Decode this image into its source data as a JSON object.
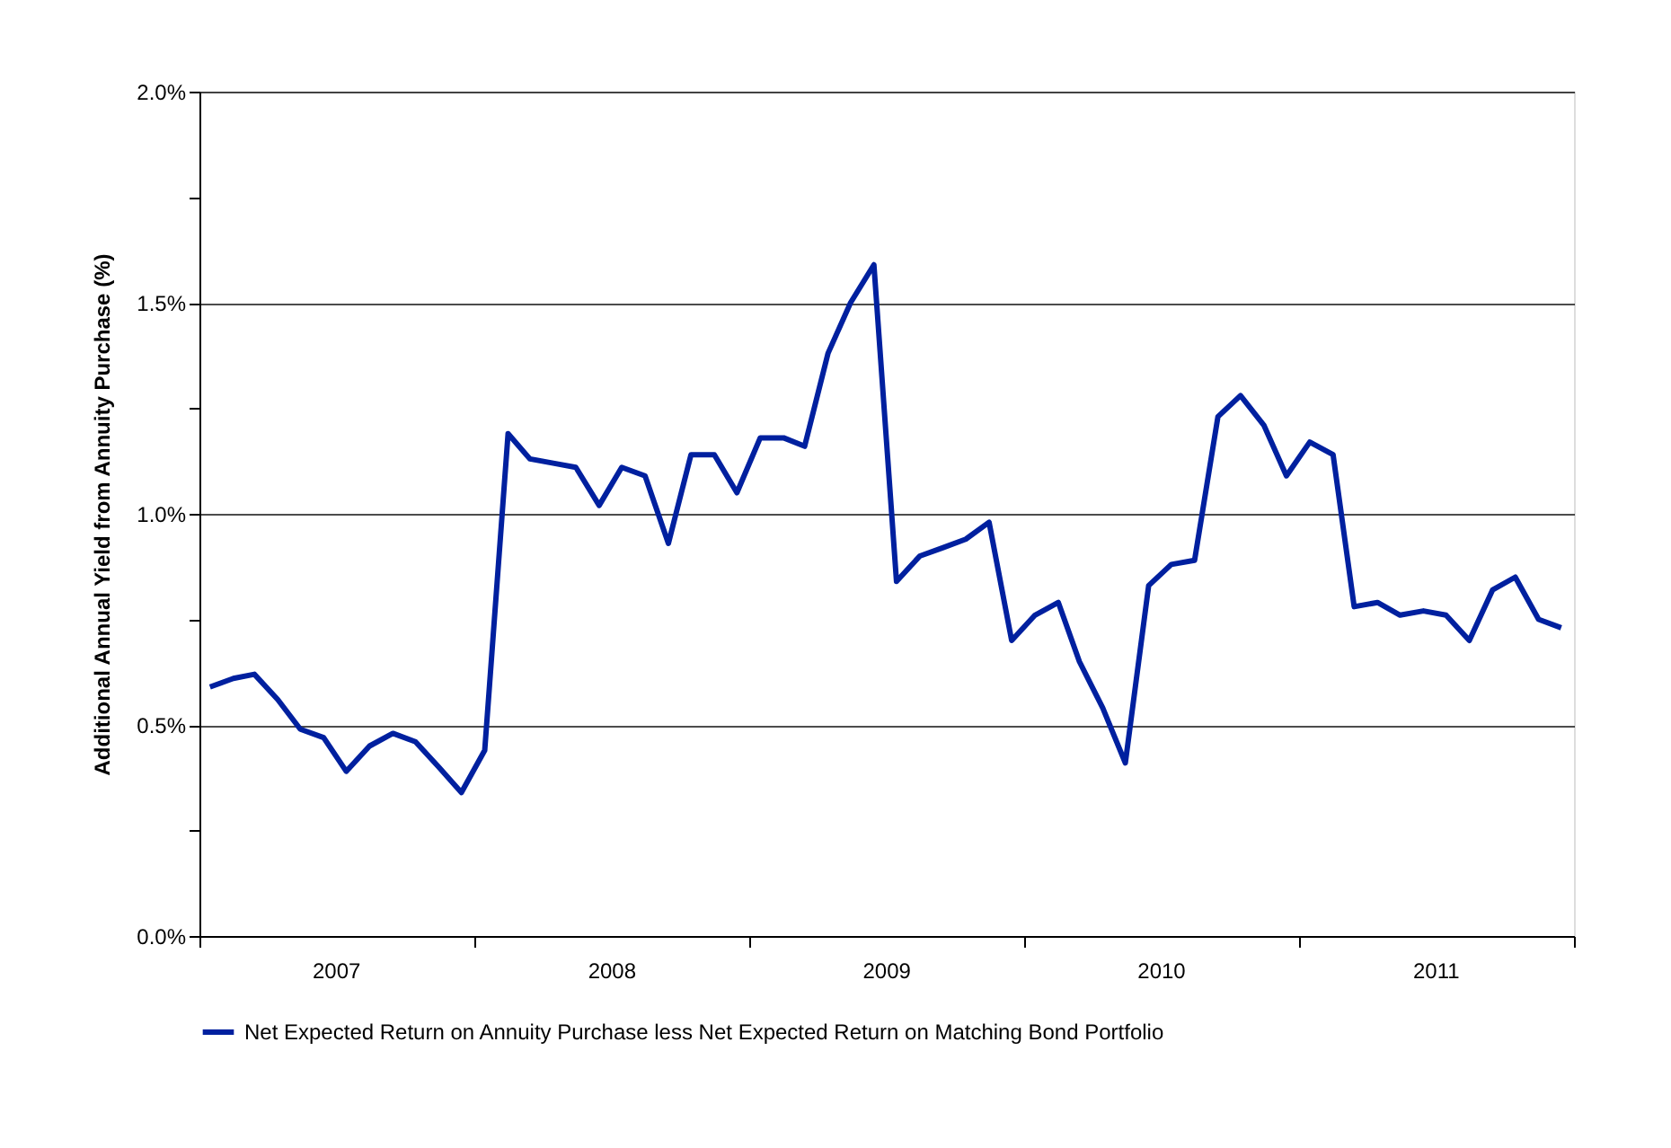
{
  "chart_data": {
    "type": "line",
    "ylabel": "Additional Annual Yield from Annuity Purchase (%)",
    "x": [
      "2007-01-15",
      "2007-02-15",
      "2007-03-15",
      "2007-04-15",
      "2007-05-15",
      "2007-06-15",
      "2007-07-15",
      "2007-08-15",
      "2007-09-15",
      "2007-10-15",
      "2007-11-15",
      "2007-12-15",
      "2008-01-15",
      "2008-02-15",
      "2008-03-15",
      "2008-04-15",
      "2008-05-15",
      "2008-06-15",
      "2008-07-15",
      "2008-08-15",
      "2008-09-15",
      "2008-10-15",
      "2008-11-15",
      "2008-12-15",
      "2009-01-15",
      "2009-02-15",
      "2009-03-15",
      "2009-04-15",
      "2009-05-15",
      "2009-06-15",
      "2009-07-15",
      "2009-08-15",
      "2009-09-15",
      "2009-10-15",
      "2009-11-15",
      "2009-12-15",
      "2010-01-15",
      "2010-02-15",
      "2010-03-15",
      "2010-04-15",
      "2010-05-15",
      "2010-06-15",
      "2010-07-15",
      "2010-08-15",
      "2010-09-15",
      "2010-10-15",
      "2010-11-15",
      "2010-12-15",
      "2011-01-15",
      "2011-02-15",
      "2011-03-15",
      "2011-04-15",
      "2011-05-15",
      "2011-06-15",
      "2011-07-15",
      "2011-08-15",
      "2011-09-15",
      "2011-10-15",
      "2011-11-15",
      "2011-12-15"
    ],
    "series": [
      {
        "name": "Net Expected Return on Annuity Purchase less Net Expected Return on Matching Bond Portfolio",
        "color": "#00209f",
        "values": [
          0.59,
          0.61,
          0.62,
          0.56,
          0.49,
          0.47,
          0.39,
          0.45,
          0.48,
          0.46,
          0.4,
          0.34,
          0.44,
          1.19,
          1.13,
          1.12,
          1.11,
          1.02,
          1.11,
          1.09,
          0.93,
          1.14,
          1.14,
          1.05,
          1.18,
          1.18,
          1.16,
          1.38,
          1.5,
          1.59,
          0.84,
          0.9,
          0.92,
          0.94,
          0.98,
          0.7,
          0.76,
          0.79,
          0.65,
          0.54,
          0.41,
          0.83,
          0.88,
          0.89,
          1.23,
          1.28,
          1.21,
          1.09,
          1.17,
          1.14,
          0.78,
          0.79,
          0.76,
          0.77,
          0.76,
          0.7,
          0.82,
          0.85,
          0.75,
          0.73
        ]
      }
    ],
    "xlim": [
      "2007-01-01",
      "2012-01-01"
    ],
    "xticks": [
      {
        "value": "2007-01-01",
        "label": null
      },
      {
        "value": "2007-07-01",
        "label": "2007"
      },
      {
        "value": "2008-01-01",
        "label": null
      },
      {
        "value": "2008-07-01",
        "label": "2008"
      },
      {
        "value": "2009-01-01",
        "label": null
      },
      {
        "value": "2009-07-01",
        "label": "2009"
      },
      {
        "value": "2010-01-01",
        "label": null
      },
      {
        "value": "2010-07-01",
        "label": "2010"
      },
      {
        "value": "2011-01-01",
        "label": null
      },
      {
        "value": "2011-07-01",
        "label": "2011"
      },
      {
        "value": "2012-01-01",
        "label": null
      }
    ],
    "ylim": [
      0,
      2.0
    ],
    "yticks": [
      {
        "value": 0,
        "label": "0.0%"
      },
      {
        "value": 0.25,
        "label": null
      },
      {
        "value": 0.5,
        "label": "0.5%"
      },
      {
        "value": 0.75,
        "label": null
      },
      {
        "value": 1.0,
        "label": "1.0%"
      },
      {
        "value": 1.25,
        "label": null
      },
      {
        "value": 1.5,
        "label": "1.5%"
      },
      {
        "value": 1.75,
        "label": null
      },
      {
        "value": 2.0,
        "label": "2.0%"
      }
    ],
    "grid": "y",
    "legend": "bottom",
    "marker": "none",
    "line_style": "solid"
  }
}
